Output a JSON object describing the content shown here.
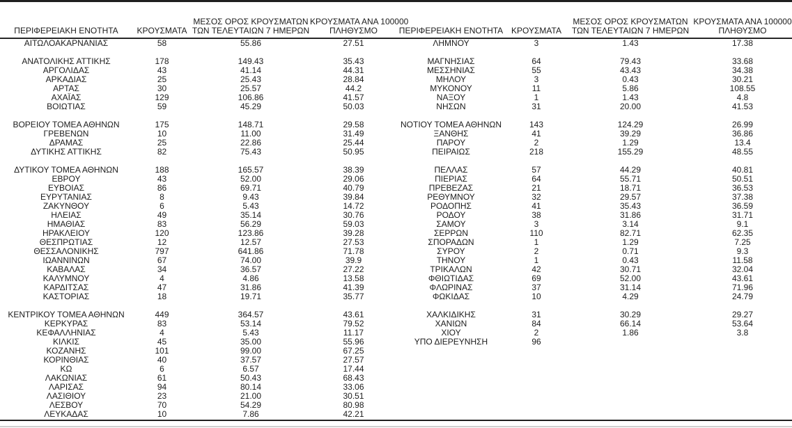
{
  "meta": {
    "description_visible_content": "Two side-by-side statistics tables of Greek regional units (cases, 7-day average of cases, cases per 100000 population)",
    "text_color": "#1c1c1c",
    "rule_color": "#1f1f1f",
    "footer_rule_color": "#cfcfcf"
  },
  "column_headers": {
    "region": "ΠΕΡΙΦΕΡΕΙΑΚΗ ΕΝΟΤΗΤΑ",
    "cases": "ΚΡΟΥΣΜΑΤΑ",
    "avg7_line1": "ΜΕΣΟΣ ΟΡΟΣ ΚΡΟΥΣΜΑΤΩΝ",
    "avg7_line2": "ΤΩΝ ΤΕΛΕΥΤΑΙΩΝ 7 ΗΜΕΡΩΝ",
    "per100k_line1": "ΚΡΟΥΣΜΑΤΑ ΑΝΑ 100000",
    "per100k_line2": "ΠΛΗΘΥΣΜΟ"
  },
  "rows": [
    {
      "l": [
        "ΑΙΤΩΛΟΑΚΑΡΝΑΝΙΑΣ",
        "58",
        "55.86",
        "27.51"
      ],
      "r": [
        "ΛΗΜΝΟΥ",
        "3",
        "1.43",
        "17.38"
      ]
    },
    {
      "spacer": true
    },
    {
      "l": [
        "ΑΝΑΤΟΛΙΚΗΣ ΑΤΤΙΚΗΣ",
        "178",
        "149.43",
        "35.43"
      ],
      "r": [
        "ΜΑΓΝΗΣΙΑΣ",
        "64",
        "79.43",
        "33.68"
      ]
    },
    {
      "l": [
        "ΑΡΓΟΛΙΔΑΣ",
        "43",
        "41.14",
        "44.31"
      ],
      "r": [
        "ΜΕΣΣΗΝΙΑΣ",
        "55",
        "43.43",
        "34.38"
      ]
    },
    {
      "l": [
        "ΑΡΚΑΔΙΑΣ",
        "25",
        "25.43",
        "28.84"
      ],
      "r": [
        "ΜΗΛΟΥ",
        "3",
        "0.43",
        "30.21"
      ]
    },
    {
      "l": [
        "ΑΡΤΑΣ",
        "30",
        "25.57",
        "44.2"
      ],
      "r": [
        "ΜΥΚΟΝΟΥ",
        "11",
        "5.86",
        "108.55"
      ]
    },
    {
      "l": [
        "ΑΧΑΪΑΣ",
        "129",
        "106.86",
        "41.57"
      ],
      "r": [
        "ΝΑΞΟΥ",
        "1",
        "1.43",
        "4.8"
      ]
    },
    {
      "l": [
        "ΒΟΙΩΤΙΑΣ",
        "59",
        "45.29",
        "50.03"
      ],
      "r": [
        "ΝΗΣΩΝ",
        "31",
        "20.00",
        "41.53"
      ]
    },
    {
      "spacer": true
    },
    {
      "l": [
        "ΒΟΡΕΙΟΥ ΤΟΜΕΑ ΑΘΗΝΩΝ",
        "175",
        "148.71",
        "29.58"
      ],
      "r": [
        "ΝΟΤΙΟΥ ΤΟΜΕΑ ΑΘΗΝΩΝ",
        "143",
        "124.29",
        "26.99"
      ]
    },
    {
      "l": [
        "ΓΡΕΒΕΝΩΝ",
        "10",
        "11.00",
        "31.49"
      ],
      "r": [
        "ΞΑΝΘΗΣ",
        "41",
        "39.29",
        "36.86"
      ]
    },
    {
      "l": [
        "ΔΡΑΜΑΣ",
        "25",
        "22.86",
        "25.44"
      ],
      "r": [
        "ΠΑΡΟΥ",
        "2",
        "1.29",
        "13.4"
      ]
    },
    {
      "l": [
        "ΔΥΤΙΚΗΣ ΑΤΤΙΚΗΣ",
        "82",
        "75.43",
        "50.95"
      ],
      "r": [
        "ΠΕΙΡΑΙΩΣ",
        "218",
        "155.29",
        "48.55"
      ]
    },
    {
      "spacer": true
    },
    {
      "l": [
        "ΔΥΤΙΚΟΥ ΤΟΜΕΑ ΑΘΗΝΩΝ",
        "188",
        "165.57",
        "38.39"
      ],
      "r": [
        "ΠΕΛΛΑΣ",
        "57",
        "44.29",
        "40.81"
      ]
    },
    {
      "l": [
        "ΕΒΡΟΥ",
        "43",
        "52.00",
        "29.06"
      ],
      "r": [
        "ΠΙΕΡΙΑΣ",
        "64",
        "55.71",
        "50.51"
      ]
    },
    {
      "l": [
        "ΕΥΒΟΙΑΣ",
        "86",
        "69.71",
        "40.79"
      ],
      "r": [
        "ΠΡΕΒΕΖΑΣ",
        "21",
        "18.71",
        "36.53"
      ]
    },
    {
      "l": [
        "ΕΥΡΥΤΑΝΙΑΣ",
        "8",
        "9.43",
        "39.84"
      ],
      "r": [
        "ΡΕΘΥΜΝΟΥ",
        "32",
        "29.57",
        "37.38"
      ]
    },
    {
      "l": [
        "ΖΑΚΥΝΘΟΥ",
        "6",
        "5.43",
        "14.72"
      ],
      "r": [
        "ΡΟΔΟΠΗΣ",
        "41",
        "35.43",
        "36.59"
      ]
    },
    {
      "l": [
        "ΗΛΕΙΑΣ",
        "49",
        "35.14",
        "30.76"
      ],
      "r": [
        "ΡΟΔΟΥ",
        "38",
        "31.86",
        "31.71"
      ]
    },
    {
      "l": [
        "ΗΜΑΘΙΑΣ",
        "83",
        "56.29",
        "59.03"
      ],
      "r": [
        "ΣΑΜΟΥ",
        "3",
        "3.14",
        "9.1"
      ]
    },
    {
      "l": [
        "ΗΡΑΚΛΕΙΟΥ",
        "120",
        "123.86",
        "39.28"
      ],
      "r": [
        "ΣΕΡΡΩΝ",
        "110",
        "82.71",
        "62.35"
      ]
    },
    {
      "l": [
        "ΘΕΣΠΡΩΤΙΑΣ",
        "12",
        "12.57",
        "27.53"
      ],
      "r": [
        "ΣΠΟΡΑΔΩΝ",
        "1",
        "1.29",
        "7.25"
      ]
    },
    {
      "l": [
        "ΘΕΣΣΑΛΟΝΙΚΗΣ",
        "797",
        "641.86",
        "71.78"
      ],
      "r": [
        "ΣΥΡΟΥ",
        "2",
        "0.71",
        "9.3"
      ]
    },
    {
      "l": [
        "ΙΩΑΝΝΙΝΩΝ",
        "67",
        "74.00",
        "39.9"
      ],
      "r": [
        "ΤΗΝΟΥ",
        "1",
        "0.43",
        "11.58"
      ]
    },
    {
      "l": [
        "ΚΑΒΑΛΑΣ",
        "34",
        "36.57",
        "27.22"
      ],
      "r": [
        "ΤΡΙΚΑΛΩΝ",
        "42",
        "30.71",
        "32.04"
      ]
    },
    {
      "l": [
        "ΚΑΛΥΜΝΟΥ",
        "4",
        "4.86",
        "13.58"
      ],
      "r": [
        "ΦΘΙΩΤΙΔΑΣ",
        "69",
        "52.00",
        "43.61"
      ]
    },
    {
      "l": [
        "ΚΑΡΔΙΤΣΑΣ",
        "47",
        "31.86",
        "41.39"
      ],
      "r": [
        "ΦΛΩΡΙΝΑΣ",
        "37",
        "31.14",
        "71.96"
      ]
    },
    {
      "l": [
        "ΚΑΣΤΟΡΙΑΣ",
        "18",
        "19.71",
        "35.77"
      ],
      "r": [
        "ΦΩΚΙΔΑΣ",
        "10",
        "4.29",
        "24.79"
      ]
    },
    {
      "spacer": true
    },
    {
      "l": [
        "ΚΕΝΤΡΙΚΟΥ ΤΟΜΕΑ ΑΘΗΝΩΝ",
        "449",
        "364.57",
        "43.61"
      ],
      "r": [
        "ΧΑΛΚΙΔΙΚΗΣ",
        "31",
        "30.29",
        "29.27"
      ]
    },
    {
      "l": [
        "ΚΕΡΚΥΡΑΣ",
        "83",
        "53.14",
        "79.52"
      ],
      "r": [
        "ΧΑΝΙΩΝ",
        "84",
        "66.14",
        "53.64"
      ]
    },
    {
      "l": [
        "ΚΕΦΑΛΛΗΝΙΑΣ",
        "4",
        "5.43",
        "11.17"
      ],
      "r": [
        "ΧΙΟΥ",
        "2",
        "1.86",
        "3.8"
      ]
    },
    {
      "l": [
        "ΚΙΛΚΙΣ",
        "45",
        "35.00",
        "55.96"
      ],
      "r": [
        "ΥΠΟ ΔΙΕΡΕΥΝΗΣΗ",
        "96",
        "",
        ""
      ]
    },
    {
      "l": [
        "ΚΟΖΑΝΗΣ",
        "101",
        "99.00",
        "67.25"
      ],
      "r": null
    },
    {
      "l": [
        "ΚΟΡΙΝΘΙΑΣ",
        "40",
        "37.57",
        "27.57"
      ],
      "r": null
    },
    {
      "l": [
        "ΚΩ",
        "6",
        "6.57",
        "17.44"
      ],
      "r": null
    },
    {
      "l": [
        "ΛΑΚΩΝΙΑΣ",
        "61",
        "50.43",
        "68.43"
      ],
      "r": null
    },
    {
      "l": [
        "ΛΑΡΙΣΑΣ",
        "94",
        "80.14",
        "33.06"
      ],
      "r": null
    },
    {
      "l": [
        "ΛΑΣΙΘΙΟΥ",
        "23",
        "21.00",
        "30.51"
      ],
      "r": null
    },
    {
      "l": [
        "ΛΕΣΒΟΥ",
        "70",
        "54.29",
        "80.98"
      ],
      "r": null
    },
    {
      "l": [
        "ΛΕΥΚΑΔΑΣ",
        "10",
        "7.86",
        "42.21"
      ],
      "r": null
    }
  ]
}
